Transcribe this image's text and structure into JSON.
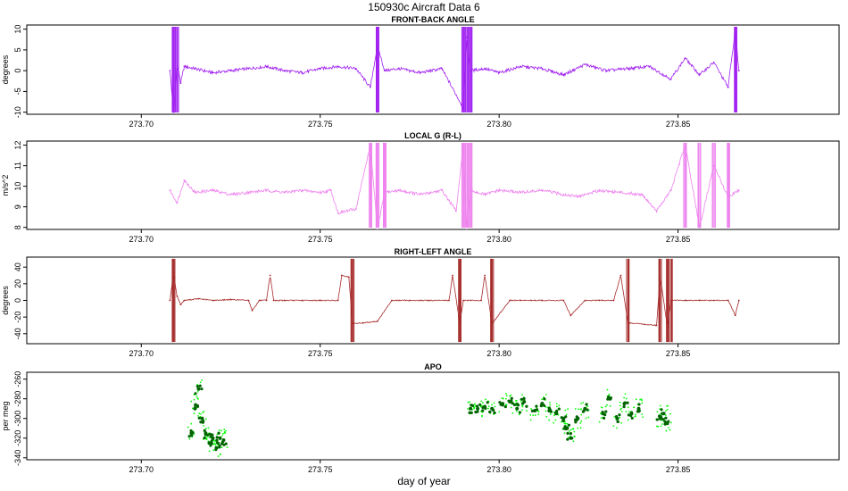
{
  "figure": {
    "title": "150930c   Aircraft Data 6",
    "xlabel": "day of year"
  },
  "chart_data": [
    {
      "type": "line",
      "title": "FRONT-BACK ANGLE",
      "ylabel": "degrees",
      "color": "#a020f0",
      "xlim": [
        273.668,
        273.895
      ],
      "ylim": [
        -10.5,
        11
      ],
      "xticks": [
        273.7,
        273.75,
        273.8,
        273.85
      ],
      "xtick_labels": [
        "273.70",
        "273.75",
        "273.80",
        "273.85"
      ],
      "yticks": [
        10,
        5,
        0,
        -5,
        -10
      ],
      "ytick_labels": [
        "10",
        "5",
        "0",
        "-5",
        "-10"
      ],
      "series": [
        {
          "x": [
            273.708,
            273.709,
            273.71,
            273.711,
            273.712,
            273.715,
            273.72,
            273.725,
            273.73,
            273.735,
            273.74,
            273.745,
            273.75,
            273.755,
            273.76,
            273.764,
            273.766,
            273.768,
            273.772,
            273.778,
            273.784,
            273.79,
            273.791,
            273.792,
            273.796,
            273.8,
            273.806,
            273.812,
            273.818,
            273.824,
            273.83,
            273.836,
            273.842,
            273.848,
            273.852,
            273.856,
            273.86,
            273.864,
            273.866,
            273.867
          ],
          "y": [
            0,
            -10,
            2,
            -3,
            1,
            0.5,
            -0.5,
            0,
            0.5,
            1,
            0,
            -0.5,
            0.5,
            1,
            0.5,
            -4,
            6,
            0,
            0.5,
            -0.5,
            0.5,
            -9,
            8,
            0,
            0.5,
            -0.5,
            1,
            0.5,
            -1,
            1.5,
            0,
            0.5,
            1,
            -2,
            3,
            -1,
            2,
            -4,
            10,
            0
          ]
        }
      ]
    },
    {
      "type": "line",
      "title": "LOCAL G (R-L)",
      "ylabel": "m/s^2",
      "color": "#ee82ee",
      "xlim": [
        273.668,
        273.895
      ],
      "ylim": [
        7.9,
        12.2
      ],
      "xticks": [
        273.7,
        273.75,
        273.8,
        273.85
      ],
      "xtick_labels": [
        "273.70",
        "273.75",
        "273.80",
        "273.85"
      ],
      "yticks": [
        12,
        11,
        10,
        9,
        8
      ],
      "ytick_labels": [
        "12",
        "11",
        "10",
        "9",
        "8"
      ],
      "series": [
        {
          "x": [
            273.708,
            273.71,
            273.712,
            273.715,
            273.72,
            273.725,
            273.73,
            273.735,
            273.74,
            273.745,
            273.75,
            273.753,
            273.755,
            273.76,
            273.764,
            273.766,
            273.768,
            273.772,
            273.778,
            273.784,
            273.788,
            273.79,
            273.791,
            273.792,
            273.796,
            273.8,
            273.806,
            273.812,
            273.818,
            273.822,
            273.828,
            273.834,
            273.84,
            273.844,
            273.848,
            273.852,
            273.856,
            273.86,
            273.864,
            273.867
          ],
          "y": [
            9.8,
            9.2,
            10.3,
            9.7,
            9.8,
            9.6,
            9.7,
            9.8,
            9.7,
            9.8,
            9.7,
            9.8,
            8.7,
            8.9,
            12,
            7.9,
            9.7,
            9.8,
            9.6,
            9.8,
            8.8,
            12,
            7.9,
            9.8,
            9.6,
            9.8,
            9.7,
            9.8,
            9.6,
            9.5,
            9.8,
            9.7,
            9.6,
            8.8,
            9.8,
            12,
            8,
            11,
            9.5,
            9.8
          ]
        }
      ]
    },
    {
      "type": "line",
      "title": "RIGHT-LEFT ANGLE",
      "ylabel": "degrees",
      "color": "#a52a2a",
      "xlim": [
        273.668,
        273.895
      ],
      "ylim": [
        -52,
        52
      ],
      "xticks": [
        273.7,
        273.75,
        273.8,
        273.85
      ],
      "xtick_labels": [
        "273.70",
        "273.75",
        "273.80",
        "273.85"
      ],
      "yticks": [
        40,
        20,
        0,
        -20,
        -40
      ],
      "ytick_labels": [
        "40",
        "20",
        "0",
        "-20",
        "-40"
      ],
      "series": [
        {
          "x": [
            273.708,
            273.709,
            273.71,
            273.711,
            273.712,
            273.716,
            273.72,
            273.725,
            273.73,
            273.731,
            273.733,
            273.735,
            273.736,
            273.737,
            273.74,
            273.745,
            273.75,
            273.755,
            273.756,
            273.758,
            273.759,
            273.762,
            273.766,
            273.77,
            273.775,
            273.78,
            273.786,
            273.787,
            273.789,
            273.79,
            273.795,
            273.796,
            273.798,
            273.803,
            273.806,
            273.812,
            273.818,
            273.82,
            273.824,
            273.828,
            273.832,
            273.834,
            273.836,
            273.844,
            273.845,
            273.847,
            273.848,
            273.852,
            273.856,
            273.86,
            273.864,
            273.866,
            273.867
          ],
          "y": [
            0,
            33,
            5,
            -5,
            0,
            2,
            0,
            1,
            0,
            -12,
            0,
            0,
            30,
            0,
            0,
            0,
            0,
            0,
            30,
            28,
            -28,
            -27,
            -25,
            0,
            0,
            0,
            0,
            30,
            -28,
            0,
            0,
            30,
            -28,
            0,
            0,
            0,
            0,
            -18,
            0,
            0,
            0,
            30,
            -27,
            -30,
            30,
            -32,
            0,
            0,
            0,
            0,
            0,
            -18,
            0
          ]
        }
      ]
    },
    {
      "type": "scatter",
      "title": "APO",
      "ylabel": "per meg",
      "color": "#006400",
      "color_secondary": "#00ff00",
      "xlim": [
        273.668,
        273.895
      ],
      "ylim": [
        -342,
        -253
      ],
      "xticks": [
        273.7,
        273.75,
        273.8,
        273.85
      ],
      "xtick_labels": [
        "273.70",
        "273.75",
        "273.80",
        "273.85"
      ],
      "yticks": [
        -260,
        -280,
        -300,
        -320,
        -340
      ],
      "ytick_labels": [
        "-260",
        "-280",
        "-300",
        "-320",
        "-340"
      ],
      "series": [
        {
          "x": [
            273.714,
            273.715,
            273.716,
            273.717,
            273.718,
            273.719,
            273.72,
            273.721,
            273.722,
            273.723,
            273.792,
            273.794,
            273.796,
            273.798,
            273.801,
            273.803,
            273.805,
            273.807,
            273.81,
            273.812,
            273.814,
            273.816,
            273.818,
            273.819,
            273.82,
            273.822,
            273.824,
            273.829,
            273.831,
            273.833,
            273.835,
            273.837,
            273.839,
            273.845,
            273.846,
            273.847
          ],
          "y": [
            -315,
            -290,
            -270,
            -300,
            -315,
            -325,
            -320,
            -330,
            -320,
            -322,
            -290,
            -290,
            -288,
            -290,
            -285,
            -283,
            -290,
            -283,
            -292,
            -285,
            -292,
            -295,
            -300,
            -310,
            -320,
            -300,
            -290,
            -295,
            -280,
            -300,
            -285,
            -295,
            -290,
            -300,
            -295,
            -305
          ]
        }
      ]
    }
  ]
}
